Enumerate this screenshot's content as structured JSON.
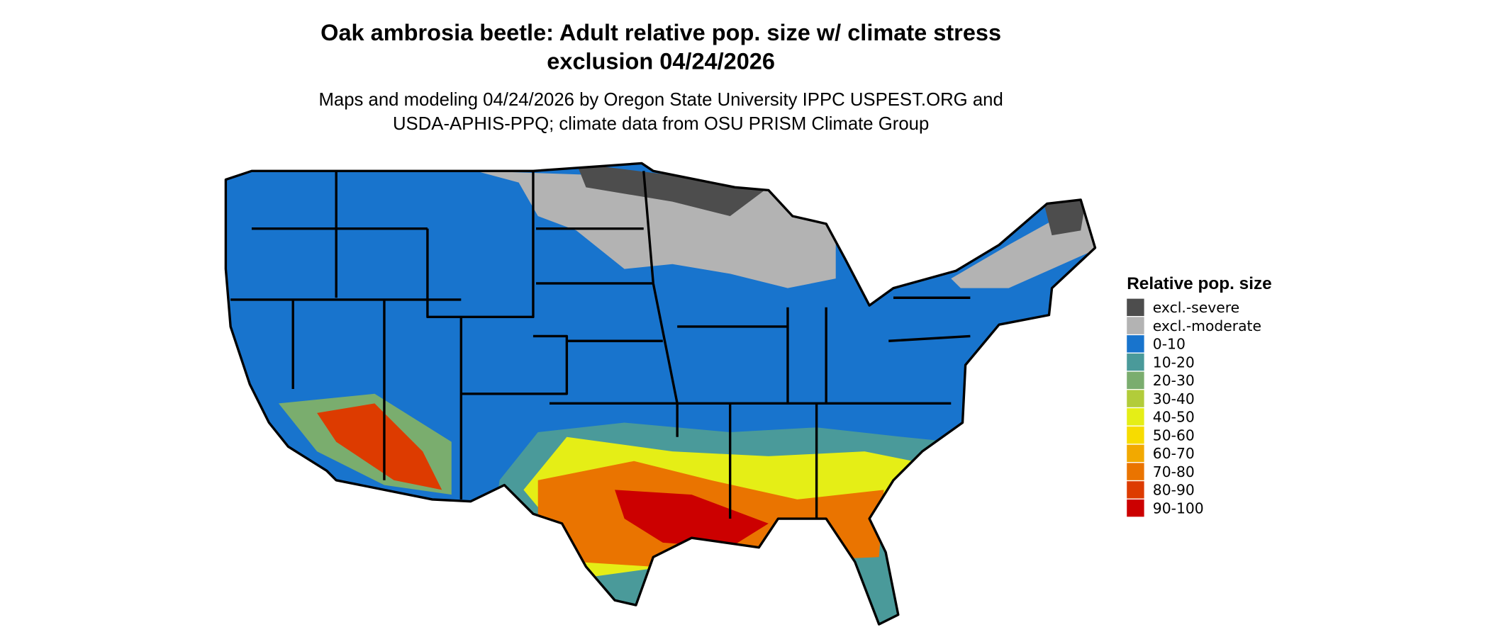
{
  "title": [
    "Oak ambrosia beetle: Adult relative pop. size w/ climate stress",
    "exclusion 04/24/2026"
  ],
  "subtitle": [
    "Maps and modeling 04/24/2026 by Oregon State University IPPC USPEST.ORG and",
    "USDA-APHIS-PPQ; climate data from OSU PRISM Climate Group"
  ],
  "legend": {
    "title": "Relative pop. size",
    "items": [
      {
        "label": "excl.-severe",
        "color": "#4d4d4d"
      },
      {
        "label": "excl.-moderate",
        "color": "#b3b3b3"
      },
      {
        "label": "0-10",
        "color": "#1874cd"
      },
      {
        "label": "10-20",
        "color": "#4a9a9a"
      },
      {
        "label": "20-30",
        "color": "#7aad6e"
      },
      {
        "label": "30-40",
        "color": "#b2cc3a"
      },
      {
        "label": "40-50",
        "color": "#e5ee16"
      },
      {
        "label": "50-60",
        "color": "#f7dc00"
      },
      {
        "label": "60-70",
        "color": "#f2a900"
      },
      {
        "label": "70-80",
        "color": "#ea7400"
      },
      {
        "label": "80-90",
        "color": "#dd3b00"
      },
      {
        "label": "90-100",
        "color": "#cc0000"
      }
    ]
  }
}
